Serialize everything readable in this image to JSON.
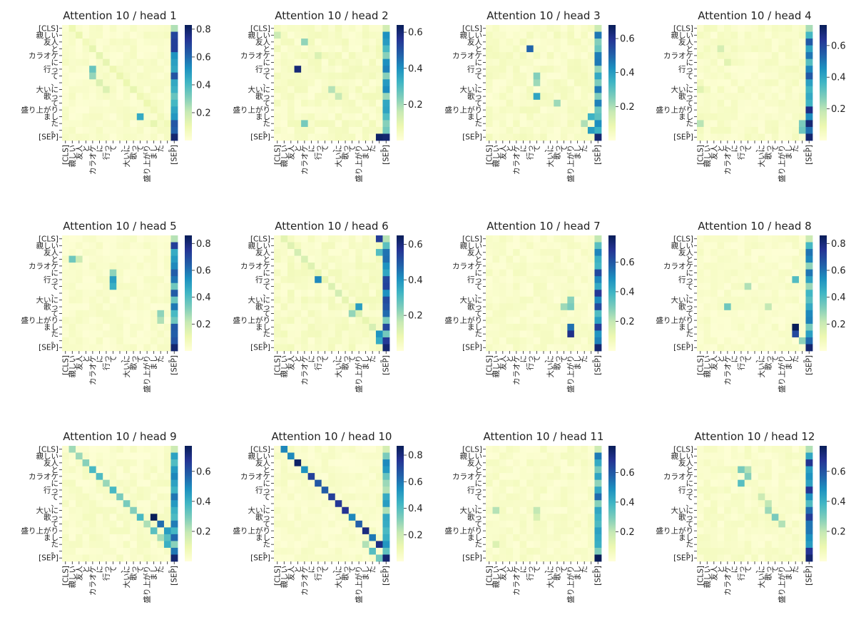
{
  "chart_data": {
    "type": "heatmap",
    "layout": {
      "rows": 3,
      "cols": 4
    },
    "tokens": [
      "[CLS]",
      "親しい",
      "友人",
      "と",
      "カラオケ",
      "に",
      "行っ",
      "て",
      "、",
      "大いに",
      "歌っ",
      "て",
      "盛り上がり",
      "まし",
      "た",
      "。",
      "[SEP]"
    ],
    "tick_labels": [
      "[CLS]",
      "親しい",
      "友人",
      "と",
      "カラオケ",
      "に",
      "行っ",
      "て",
      "、",
      "大いに",
      "歌っ",
      "て",
      "盛り上がり",
      "まし",
      "た",
      "。",
      "[SEP]"
    ],
    "colormap": {
      "name": "YlGnBu",
      "stops": [
        "#ffffd9",
        "#edf8b1",
        "#c7e9b4",
        "#7fcdbb",
        "#41b6c4",
        "#1d91c0",
        "#225ea8",
        "#253494",
        "#081d58"
      ]
    },
    "heads": [
      {
        "title": "Attention 10 / head 1",
        "vmax": 0.83,
        "ticks": [
          "0.2",
          "0.4",
          "0.6",
          "0.8"
        ],
        "diag": 1,
        "diagv": 0.1,
        "sep": 0.6,
        "seed": 11,
        "extra": [
          [
            6,
            4,
            0.35
          ],
          [
            7,
            4,
            0.28
          ],
          [
            13,
            11,
            0.45
          ],
          [
            8,
            5,
            0.15
          ],
          [
            9,
            6,
            0.15
          ],
          [
            14,
            13,
            0.12
          ]
        ]
      },
      {
        "title": "Attention 10 / head 2",
        "vmax": 0.64,
        "ticks": [
          "0.2",
          "0.4",
          "0.6"
        ],
        "diag": 0,
        "diagv": 0.05,
        "sep": 0.35,
        "seed": 23,
        "extra": [
          [
            6,
            3,
            0.6
          ],
          [
            2,
            4,
            0.22
          ],
          [
            16,
            15,
            0.62
          ],
          [
            14,
            4,
            0.25
          ],
          [
            9,
            8,
            0.18
          ],
          [
            10,
            9,
            0.16
          ],
          [
            1,
            0,
            0.15
          ],
          [
            4,
            6,
            0.12
          ]
        ]
      },
      {
        "title": "Attention 10 / head 3",
        "vmax": 0.68,
        "ticks": [
          "0.2",
          "0.4",
          "0.6"
        ],
        "diag": -1,
        "diagv": 0.06,
        "sep": 0.4,
        "seed": 37,
        "extra": [
          [
            3,
            6,
            0.5
          ],
          [
            7,
            7,
            0.25
          ],
          [
            8,
            7,
            0.22
          ],
          [
            10,
            7,
            0.38
          ],
          [
            11,
            10,
            0.22
          ],
          [
            13,
            15,
            0.35
          ],
          [
            14,
            14,
            0.2
          ],
          [
            15,
            15,
            0.4
          ]
        ]
      },
      {
        "title": "Attention 10 / head 4",
        "vmax": 0.73,
        "ticks": [
          "0.2",
          "0.4",
          "0.6"
        ],
        "diag": -1,
        "diagv": 0.08,
        "sep": 0.55,
        "seed": 41,
        "extra": [
          [
            3,
            3,
            0.15
          ],
          [
            5,
            4,
            0.12
          ],
          [
            14,
            0,
            0.2
          ],
          [
            15,
            15,
            0.3
          ],
          [
            14,
            15,
            0.28
          ],
          [
            9,
            0,
            0.12
          ]
        ]
      },
      {
        "title": "Attention 10 / head 5",
        "vmax": 0.86,
        "ticks": [
          "0.2",
          "0.4",
          "0.6",
          "0.8"
        ],
        "diag": -1,
        "diagv": 0.1,
        "sep": 0.6,
        "seed": 53,
        "extra": [
          [
            3,
            1,
            0.35
          ],
          [
            6,
            7,
            0.5
          ],
          [
            7,
            7,
            0.45
          ],
          [
            5,
            7,
            0.3
          ],
          [
            11,
            14,
            0.3
          ],
          [
            12,
            14,
            0.25
          ],
          [
            3,
            2,
            0.2
          ]
        ]
      },
      {
        "title": "Attention 10 / head 6",
        "vmax": 0.65,
        "ticks": [
          "0.2",
          "0.4",
          "0.6"
        ],
        "diag": 1,
        "diagv": 0.12,
        "sep": 0.45,
        "seed": 67,
        "extra": [
          [
            0,
            15,
            0.55
          ],
          [
            6,
            6,
            0.42
          ],
          [
            10,
            12,
            0.38
          ],
          [
            14,
            15,
            0.4
          ],
          [
            15,
            15,
            0.35
          ],
          [
            2,
            15,
            0.3
          ],
          [
            11,
            11,
            0.22
          ]
        ]
      },
      {
        "title": "Attention 10 / head 7",
        "vmax": 0.78,
        "ticks": [
          "0.2",
          "0.4",
          "0.6"
        ],
        "diag": 0,
        "diagv": 0.05,
        "sep": 0.55,
        "seed": 79,
        "extra": [
          [
            13,
            12,
            0.55
          ],
          [
            14,
            12,
            0.7
          ],
          [
            10,
            12,
            0.3
          ],
          [
            9,
            12,
            0.28
          ],
          [
            10,
            11,
            0.25
          ],
          [
            0,
            16,
            0.2
          ]
        ]
      },
      {
        "title": "Attention 10 / head 8",
        "vmax": 0.86,
        "ticks": [
          "0.2",
          "0.4",
          "0.6",
          "0.8"
        ],
        "diag": -1,
        "diagv": 0.06,
        "sep": 0.5,
        "seed": 83,
        "extra": [
          [
            13,
            14,
            0.86
          ],
          [
            14,
            14,
            0.7
          ],
          [
            6,
            14,
            0.4
          ],
          [
            7,
            7,
            0.25
          ],
          [
            10,
            4,
            0.35
          ],
          [
            10,
            10,
            0.22
          ],
          [
            15,
            15,
            0.3
          ]
        ]
      },
      {
        "title": "Attention 10 / head 9",
        "vmax": 0.77,
        "ticks": [
          "0.2",
          "0.4",
          "0.6"
        ],
        "diag": 1,
        "diagv": 0.3,
        "sep": 0.45,
        "seed": 97,
        "extra": [
          [
            1,
            2,
            0.25
          ],
          [
            10,
            13,
            0.77
          ],
          [
            11,
            14,
            0.55
          ],
          [
            12,
            15,
            0.45
          ],
          [
            14,
            15,
            0.4
          ],
          [
            13,
            15,
            0.35
          ]
        ]
      },
      {
        "title": "Attention 10 / head 10",
        "vmax": 0.87,
        "ticks": [
          "0.2",
          "0.4",
          "0.6",
          "0.8"
        ],
        "diag": 1,
        "diagv": 0.7,
        "sep": 0.45,
        "seed": 101,
        "extra": [
          [
            15,
            14,
            0.4
          ],
          [
            14,
            13,
            0.25
          ],
          [
            12,
            13,
            0.8
          ],
          [
            16,
            15,
            0.35
          ]
        ]
      },
      {
        "title": "Attention 10 / head 11",
        "vmax": 0.78,
        "ticks": [
          "0.2",
          "0.4",
          "0.6"
        ],
        "diag": -1,
        "diagv": 0.06,
        "sep": 0.45,
        "seed": 113,
        "extra": [
          [
            9,
            1,
            0.22
          ],
          [
            9,
            7,
            0.2
          ],
          [
            10,
            7,
            0.15
          ],
          [
            16,
            16,
            0.78
          ],
          [
            14,
            1,
            0.14
          ]
        ]
      },
      {
        "title": "Attention 10 / head 12",
        "vmax": 0.77,
        "ticks": [
          "0.2",
          "0.4",
          "0.6"
        ],
        "diag": -1,
        "diagv": 0.1,
        "sep": 0.55,
        "seed": 127,
        "extra": [
          [
            3,
            6,
            0.3
          ],
          [
            5,
            6,
            0.35
          ],
          [
            4,
            7,
            0.28
          ],
          [
            9,
            10,
            0.25
          ],
          [
            10,
            11,
            0.3
          ],
          [
            11,
            12,
            0.22
          ],
          [
            8,
            10,
            0.2
          ],
          [
            7,
            9,
            0.18
          ],
          [
            3,
            7,
            0.22
          ]
        ]
      }
    ]
  }
}
